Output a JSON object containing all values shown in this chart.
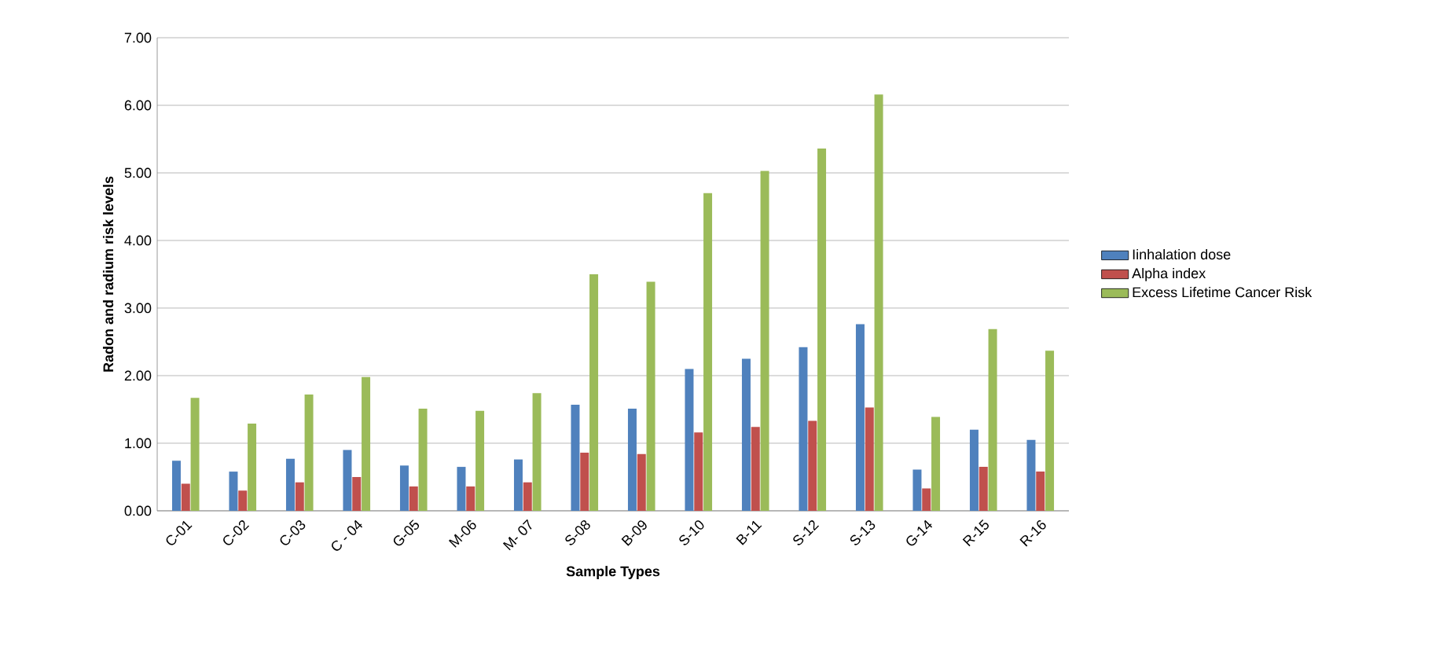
{
  "chart_data": {
    "type": "bar",
    "xlabel": "Sample Types",
    "ylabel": "Radon and radium risk levels",
    "categories": [
      "C-01",
      "C-02",
      "C-03",
      "C - 04",
      "G-05",
      "M-06",
      "M- 07",
      "S-08",
      "B-09",
      "S-10",
      "B-11",
      "S-12",
      "S-13",
      "G-14",
      "R-15",
      "R-16"
    ],
    "series": [
      {
        "name": "Iinhalation dose",
        "color": "#4f81bd",
        "values": [
          0.74,
          0.58,
          0.77,
          0.9,
          0.67,
          0.65,
          0.76,
          1.57,
          1.51,
          2.1,
          2.25,
          2.42,
          2.76,
          0.61,
          1.2,
          1.05
        ]
      },
      {
        "name": "Alpha index",
        "color": "#c0504d",
        "values": [
          0.4,
          0.3,
          0.42,
          0.5,
          0.36,
          0.36,
          0.42,
          0.86,
          0.84,
          1.16,
          1.24,
          1.33,
          1.53,
          0.33,
          0.65,
          0.58
        ]
      },
      {
        "name": "Excess Lifetime Cancer Risk",
        "color": "#9bbb59",
        "values": [
          1.67,
          1.29,
          1.72,
          1.98,
          1.51,
          1.48,
          1.74,
          3.5,
          3.39,
          4.7,
          5.03,
          5.36,
          6.16,
          1.39,
          2.69,
          2.37
        ]
      }
    ],
    "ylim": [
      0,
      7
    ],
    "yticks": [
      {
        "value": 0,
        "label": "0.00"
      },
      {
        "value": 1,
        "label": "1.00"
      },
      {
        "value": 2,
        "label": "2.00"
      },
      {
        "value": 3,
        "label": "3.00"
      },
      {
        "value": 4,
        "label": "4.00"
      },
      {
        "value": 5,
        "label": "5.00"
      },
      {
        "value": 6,
        "label": "6.00"
      },
      {
        "value": 7,
        "label": "7.00"
      }
    ],
    "grid": "y",
    "legend": "right"
  }
}
